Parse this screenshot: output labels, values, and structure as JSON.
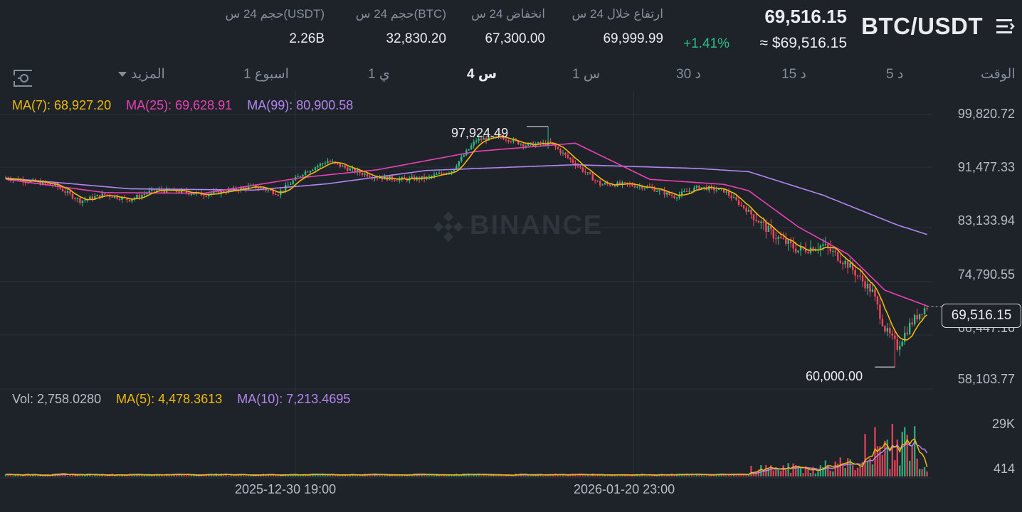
{
  "header": {
    "pair": "BTC/USDT",
    "last_price": "69,516.15",
    "change_pct": "+1.41%",
    "usd_price": "≈ $69,516.15",
    "high_label": "ارتفاع خلال 24 س",
    "high_value": "69,999.99",
    "low_label": "انخفاض 24 س",
    "low_value": "67,300.00",
    "vol_btc_label": "حجم 24 س(BTC)",
    "vol_btc_value": "32,830.20",
    "vol_usdt_label": "حجم 24 س(USDT)",
    "vol_usdt_value": "2.26B"
  },
  "timeframes": {
    "time": "الوقت",
    "m5": "5 د",
    "m15": "15 د",
    "m30": "30 د",
    "h1": "1 س",
    "h4": "4 س",
    "d1": "1 ي",
    "w1": "1 اسبوع",
    "more": "المزيد",
    "active": "4 س"
  },
  "legend": {
    "ma7": "MA(7): 68,927.20",
    "ma25": "MA(25): 69,628.91",
    "ma99": "MA(99): 80,900.58",
    "vol": "Vol: 2,758.0280",
    "vma5": "MA(5): 4,478.3613",
    "vma10": "MA(10): 7,213.4695"
  },
  "watermark": "BINANCE",
  "colors": {
    "up": "#2ebd85",
    "down": "#f6465d",
    "ma7": "#f0b90b",
    "ma25": "#eb40b5",
    "ma99": "#b385f0",
    "background": "#1e2329"
  },
  "chart_data": {
    "type": "candlestick",
    "pair": "BTC/USDT",
    "interval": "4 س",
    "y_ticks": [
      "99,820.72",
      "91,477.33",
      "83,133.94",
      "74,790.55",
      "66,447.16",
      "58,103.77"
    ],
    "current_price": "69,516.15",
    "marked_high": "97,924.49",
    "marked_low": "60,000.00",
    "volume_ticks": [
      "29K",
      "414"
    ],
    "x_ticks": [
      "2025-12-30 19:00",
      "2026-01-20 23:00"
    ],
    "close_path": [
      [
        0,
        89800
      ],
      [
        10,
        89300
      ],
      [
        20,
        88600
      ],
      [
        30,
        86200
      ],
      [
        40,
        87200
      ],
      [
        50,
        86400
      ],
      [
        60,
        87900
      ],
      [
        70,
        87700
      ],
      [
        80,
        87200
      ],
      [
        90,
        87800
      ],
      [
        100,
        88500
      ],
      [
        110,
        87400
      ],
      [
        120,
        90600
      ],
      [
        130,
        92500
      ],
      [
        140,
        91000
      ],
      [
        150,
        89900
      ],
      [
        160,
        89600
      ],
      [
        170,
        89800
      ],
      [
        180,
        91000
      ],
      [
        190,
        95800
      ],
      [
        200,
        96300
      ],
      [
        210,
        95000
      ],
      [
        220,
        95300
      ],
      [
        230,
        92000
      ],
      [
        240,
        88800
      ],
      [
        250,
        88800
      ],
      [
        260,
        88300
      ],
      [
        270,
        86900
      ],
      [
        280,
        88400
      ],
      [
        290,
        87800
      ],
      [
        300,
        84500
      ],
      [
        310,
        80800
      ],
      [
        320,
        78400
      ],
      [
        330,
        79200
      ],
      [
        340,
        76200
      ],
      [
        350,
        71800
      ],
      [
        355,
        66000
      ],
      [
        360,
        63200
      ],
      [
        365,
        66600
      ],
      [
        370,
        69000
      ],
      [
        372,
        69516
      ]
    ],
    "ma99_path": [
      [
        0,
        89800
      ],
      [
        50,
        88100
      ],
      [
        100,
        87900
      ],
      [
        130,
        88900
      ],
      [
        170,
        91000
      ],
      [
        230,
        91900
      ],
      [
        280,
        91300
      ],
      [
        300,
        90800
      ],
      [
        330,
        87100
      ],
      [
        360,
        82400
      ],
      [
        372,
        80900
      ]
    ],
    "ma25_path": [
      [
        0,
        89600
      ],
      [
        40,
        87500
      ],
      [
        80,
        87400
      ],
      [
        120,
        89900
      ],
      [
        150,
        91100
      ],
      [
        190,
        94000
      ],
      [
        230,
        95300
      ],
      [
        260,
        89600
      ],
      [
        290,
        88800
      ],
      [
        300,
        87800
      ],
      [
        320,
        82100
      ],
      [
        340,
        77800
      ],
      [
        355,
        72100
      ],
      [
        372,
        69629
      ]
    ],
    "volume": {
      "approx_max": 29000,
      "spike_region_values": [
        2000,
        5000,
        10000,
        25000,
        29000,
        20000,
        12000,
        6000,
        2758
      ]
    }
  }
}
